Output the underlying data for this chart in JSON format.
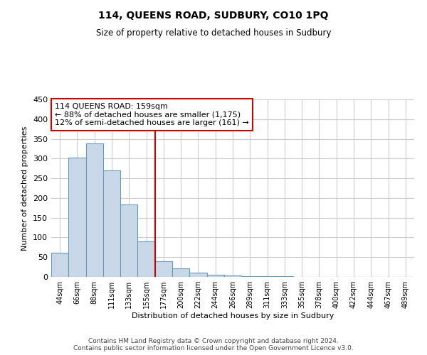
{
  "title": "114, QUEENS ROAD, SUDBURY, CO10 1PQ",
  "subtitle": "Size of property relative to detached houses in Sudbury",
  "xlabel": "Distribution of detached houses by size in Sudbury",
  "ylabel": "Number of detached properties",
  "footer_line1": "Contains HM Land Registry data © Crown copyright and database right 2024.",
  "footer_line2": "Contains public sector information licensed under the Open Government Licence v3.0.",
  "bar_labels": [
    "44sqm",
    "66sqm",
    "88sqm",
    "111sqm",
    "133sqm",
    "155sqm",
    "177sqm",
    "200sqm",
    "222sqm",
    "244sqm",
    "266sqm",
    "289sqm",
    "311sqm",
    "333sqm",
    "355sqm",
    "378sqm",
    "400sqm",
    "422sqm",
    "444sqm",
    "467sqm",
    "489sqm"
  ],
  "bar_values": [
    62,
    302,
    338,
    270,
    183,
    90,
    40,
    22,
    10,
    5,
    3,
    2,
    1,
    1,
    0,
    0,
    0,
    0,
    0,
    0,
    0
  ],
  "bar_color": "#c8d8e8",
  "bar_edge_color": "#6699bb",
  "highlight_bar_index": 5,
  "vline_color": "#cc0000",
  "annotation_text_line1": "114 QUEENS ROAD: 159sqm",
  "annotation_text_line2": "← 88% of detached houses are smaller (1,175)",
  "annotation_text_line3": "12% of semi-detached houses are larger (161) →",
  "annotation_box_color": "#cc0000",
  "ylim": [
    0,
    450
  ],
  "background_color": "#ffffff",
  "grid_color": "#cccccc"
}
